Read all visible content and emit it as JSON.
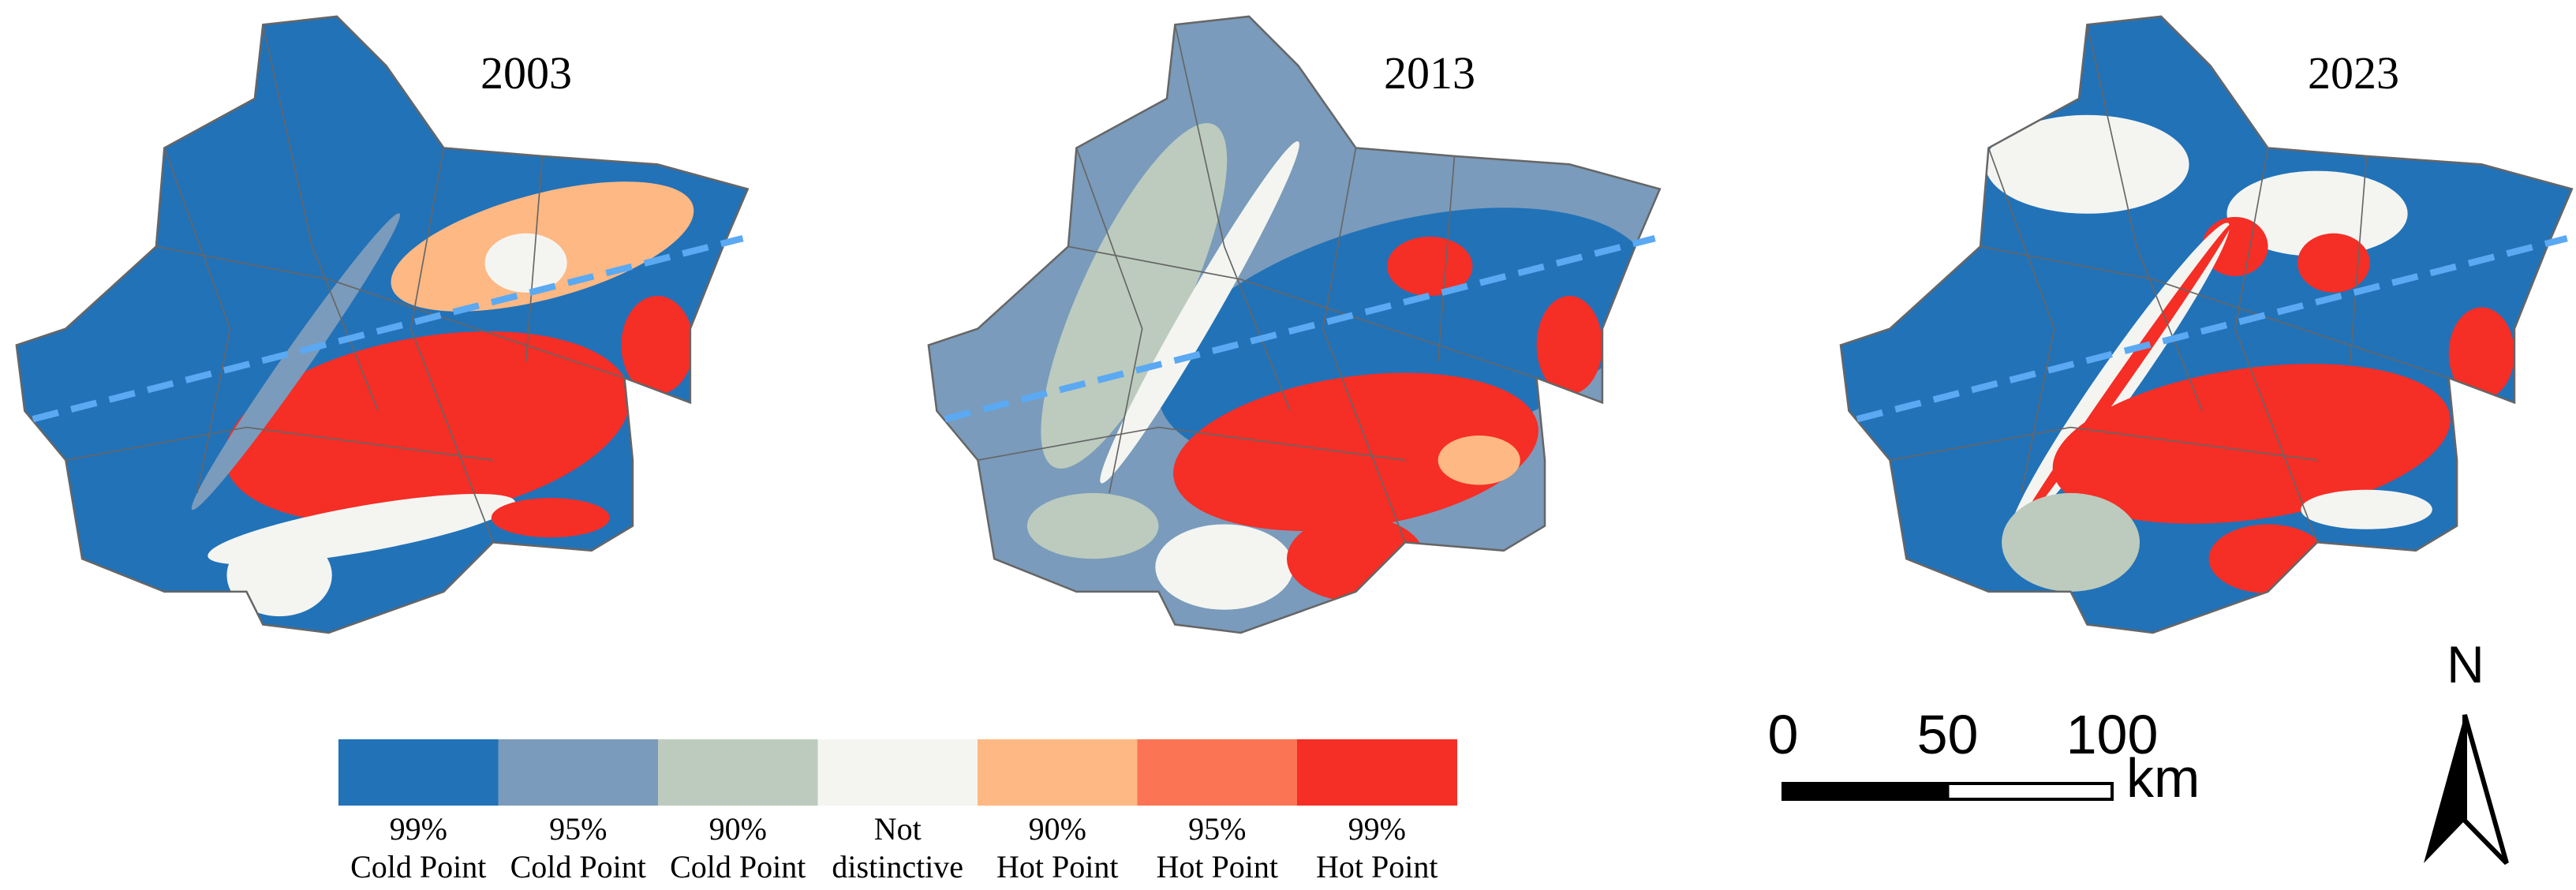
{
  "panels": [
    {
      "title": "2003"
    },
    {
      "title": "2013"
    },
    {
      "title": "2023"
    }
  ],
  "legend": {
    "items": [
      {
        "line1": "99%",
        "line2": "Cold Point",
        "color": "#2272b8"
      },
      {
        "line1": "95%",
        "line2": "Cold Point",
        "color": "#7a9bbb"
      },
      {
        "line1": "90%",
        "line2": "Cold Point",
        "color": "#bccbbd"
      },
      {
        "line1": "Not",
        "line2": "distinctive",
        "color": "#f4f5f1"
      },
      {
        "line1": "90%",
        "line2": "Hot Point",
        "color": "#fdb883"
      },
      {
        "line1": "95%",
        "line2": "Hot Point",
        "color": "#fb7453"
      },
      {
        "line1": "99%",
        "line2": "Hot Point",
        "color": "#f52e26"
      }
    ]
  },
  "scale_bar": {
    "ticks": [
      0,
      50,
      100
    ],
    "unit": "km"
  },
  "north_arrow": {
    "label": "N"
  }
}
